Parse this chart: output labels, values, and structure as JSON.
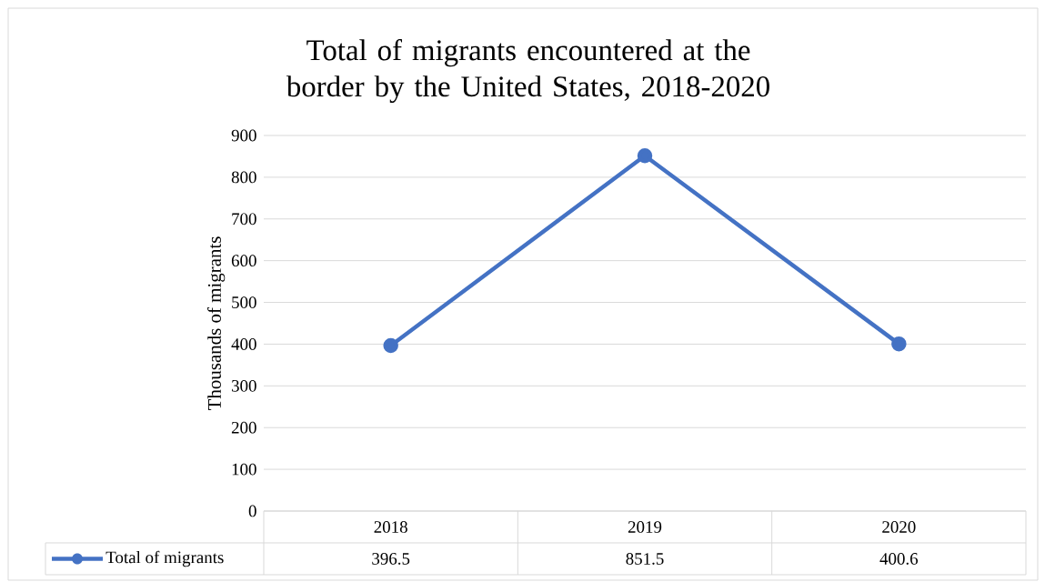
{
  "chart_data": {
    "type": "line",
    "title": "Total of migrants encountered at the border by the United States, 2018-2020",
    "ylabel": "Thousands of migrants",
    "categories": [
      "2018",
      "2019",
      "2020"
    ],
    "series": [
      {
        "name": "Total of migrants",
        "color": "#4472c4",
        "values": [
          396.5,
          851.5,
          400.6
        ]
      }
    ],
    "ylim": [
      0,
      900
    ],
    "yticks": [
      0,
      100,
      200,
      300,
      400,
      500,
      600,
      700,
      800,
      900
    ],
    "grid": "y",
    "legend": "bottom",
    "marker": "circle",
    "data_labels": true
  }
}
